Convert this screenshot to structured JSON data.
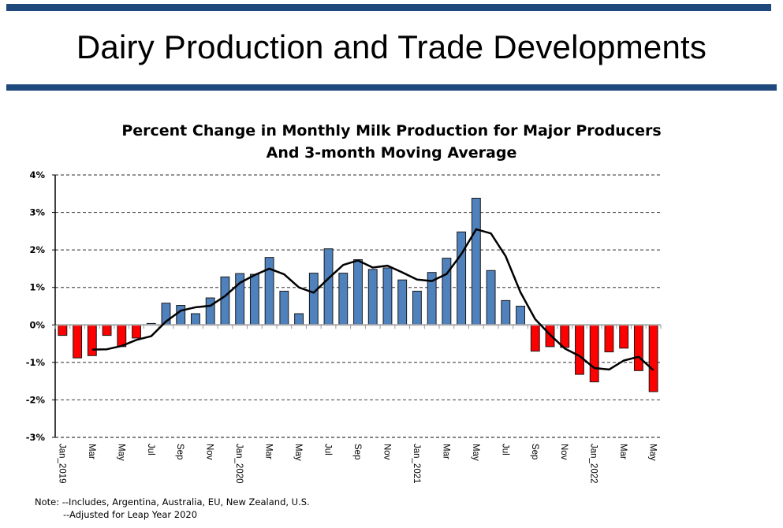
{
  "slide": {
    "title": "Dairy Production and Trade Developments"
  },
  "chart_data": {
    "type": "bar",
    "title": "Percent Change in Monthly Milk Production for Major Producers",
    "subtitle": "And 3-month Moving Average",
    "xlabel": "",
    "ylabel": "",
    "ylim": [
      -3,
      4
    ],
    "yticks": [
      4,
      3,
      2,
      1,
      0,
      -1,
      -2,
      -3
    ],
    "ytick_labels": [
      "4%",
      "3%",
      "2%",
      "1%",
      "0%",
      "-1%",
      "-2%",
      "-3%"
    ],
    "grid": true,
    "categories": [
      "Jan_2019",
      "Feb",
      "Mar",
      "Apr",
      "May",
      "Jun",
      "Jul",
      "Aug",
      "Sep",
      "Oct",
      "Nov",
      "Dec",
      "Jan_2020",
      "Feb",
      "Mar",
      "Apr",
      "May",
      "Jun",
      "Jul",
      "Aug",
      "Sep",
      "Oct",
      "Nov",
      "Dec",
      "Jan_2021",
      "Feb",
      "Mar",
      "Apr",
      "May",
      "Jun",
      "Jul",
      "Aug",
      "Sep",
      "Oct",
      "Nov",
      "Dec",
      "Jan_2022",
      "Feb",
      "Mar",
      "Apr",
      "May"
    ],
    "xtick_labels_shown": [
      "Jan_2019",
      "Mar",
      "May",
      "Jul",
      "Sep",
      "Nov",
      "Jan_2020",
      "Mar",
      "May",
      "Jul",
      "Sep",
      "Nov",
      "Jan_2021",
      "Mar",
      "May",
      "Jul",
      "Sep",
      "Nov",
      "Jan_2022",
      "Mar",
      "May"
    ],
    "series": [
      {
        "name": "Percent change (monthly)",
        "kind": "bar",
        "positive_color": "#4f81bd",
        "negative_color": "#ff0000",
        "values": [
          -0.28,
          -0.88,
          -0.82,
          -0.28,
          -0.58,
          -0.35,
          0.04,
          0.58,
          0.52,
          0.3,
          0.72,
          1.28,
          1.37,
          1.35,
          1.8,
          0.9,
          0.3,
          1.38,
          2.03,
          1.38,
          1.74,
          1.48,
          1.52,
          1.2,
          0.9,
          1.4,
          1.78,
          2.48,
          3.38,
          1.45,
          0.65,
          0.5,
          -0.7,
          -0.58,
          -0.6,
          -1.32,
          -1.52,
          -0.72,
          -0.62,
          -1.22,
          -1.78
        ]
      },
      {
        "name": "3-month moving average",
        "kind": "line",
        "color": "#000000",
        "values": [
          null,
          null,
          -0.66,
          -0.65,
          -0.56,
          -0.4,
          -0.3,
          0.09,
          0.38,
          0.47,
          0.51,
          0.77,
          1.12,
          1.33,
          1.5,
          1.35,
          1.0,
          0.86,
          1.24,
          1.6,
          1.72,
          1.53,
          1.58,
          1.4,
          1.21,
          1.17,
          1.36,
          1.89,
          2.55,
          2.44,
          1.83,
          0.87,
          0.15,
          -0.26,
          -0.63,
          -0.83,
          -1.15,
          -1.19,
          -0.95,
          -0.85,
          -1.21
        ]
      }
    ]
  },
  "note": {
    "line1": "Note: --Includes, Argentina, Australia, EU, New Zealand, U.S.",
    "line2": "--Adjusted for Leap Year 2020"
  }
}
